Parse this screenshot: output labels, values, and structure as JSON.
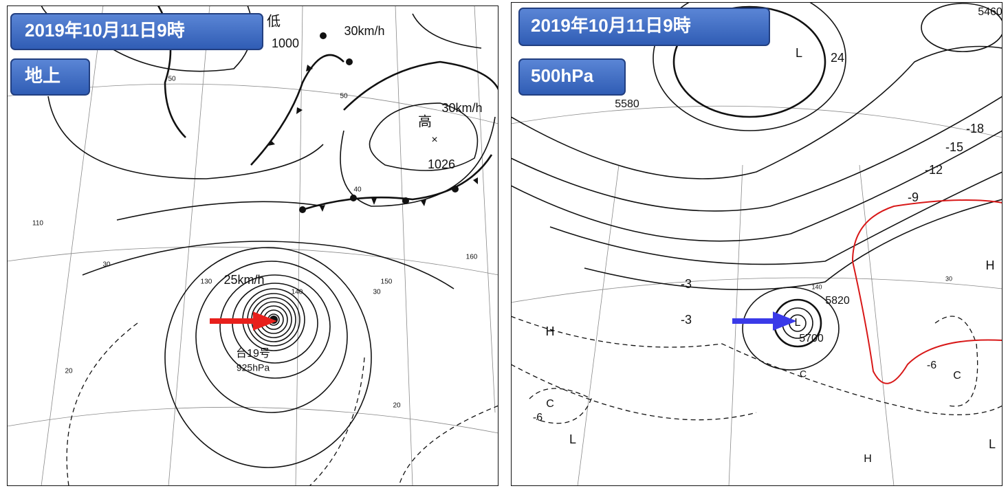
{
  "left": {
    "title": "2019年10月11日9時",
    "level": "地上",
    "labels": [
      "低",
      "1000",
      "30km/h",
      "高",
      "×",
      "30km/h",
      "1026",
      "25km/h",
      "台19号",
      "925hPa",
      "50",
      "50",
      "40",
      "30",
      "30",
      "20",
      "20",
      "110",
      "130",
      "140",
      "150",
      "160"
    ]
  },
  "right": {
    "title": "2019年10月11日9時",
    "level": "500hPa",
    "labels": [
      "5460",
      "5580",
      "5820",
      "5700",
      "L",
      "L",
      "L",
      "L",
      "H",
      "H",
      "H",
      "C",
      "C",
      "C",
      "-18",
      "-15",
      "-12",
      "-9",
      "-6",
      "-6",
      "-3",
      "-3",
      "24",
      "30",
      "140"
    ]
  }
}
